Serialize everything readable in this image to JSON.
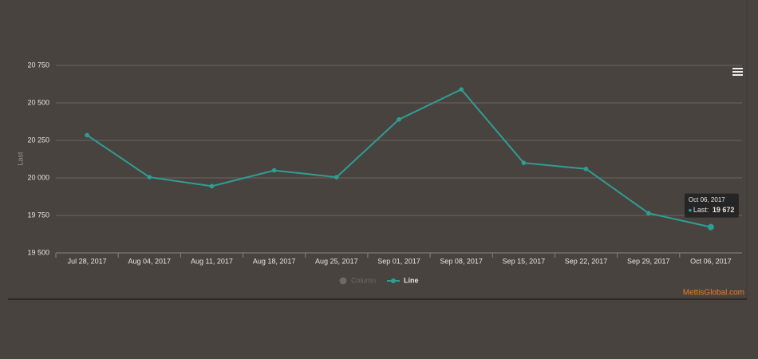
{
  "chart_data": {
    "type": "line",
    "y_label": "Last",
    "categories": [
      "Jul 28, 2017",
      "Aug 04, 2017",
      "Aug 11, 2017",
      "Aug 18, 2017",
      "Aug 25, 2017",
      "Sep 01, 2017",
      "Sep 08, 2017",
      "Sep 15, 2017",
      "Sep 22, 2017",
      "Sep 29, 2017",
      "Oct 06, 2017"
    ],
    "series": [
      {
        "name": "Line",
        "color": "#2e9e94",
        "values": [
          20285,
          20005,
          19945,
          20050,
          20005,
          20390,
          20590,
          20100,
          20060,
          19765,
          19672
        ]
      }
    ],
    "inactive_legend": [
      {
        "name": "Column",
        "color": "#6e6964"
      }
    ],
    "ylim": [
      19500,
      20750
    ],
    "yticks": [
      {
        "value": 19500,
        "label": "19 500"
      },
      {
        "value": 19750,
        "label": "19 750"
      },
      {
        "value": 20000,
        "label": "20 000"
      },
      {
        "value": 20250,
        "label": "20 250"
      },
      {
        "value": 20500,
        "label": "20 500"
      },
      {
        "value": 20750,
        "label": "20 750"
      }
    ],
    "grid": true,
    "tooltip": {
      "title": "Oct 06, 2017",
      "label": "Last:",
      "value": "19 672"
    },
    "watermark": "MettisGlobal.com"
  }
}
